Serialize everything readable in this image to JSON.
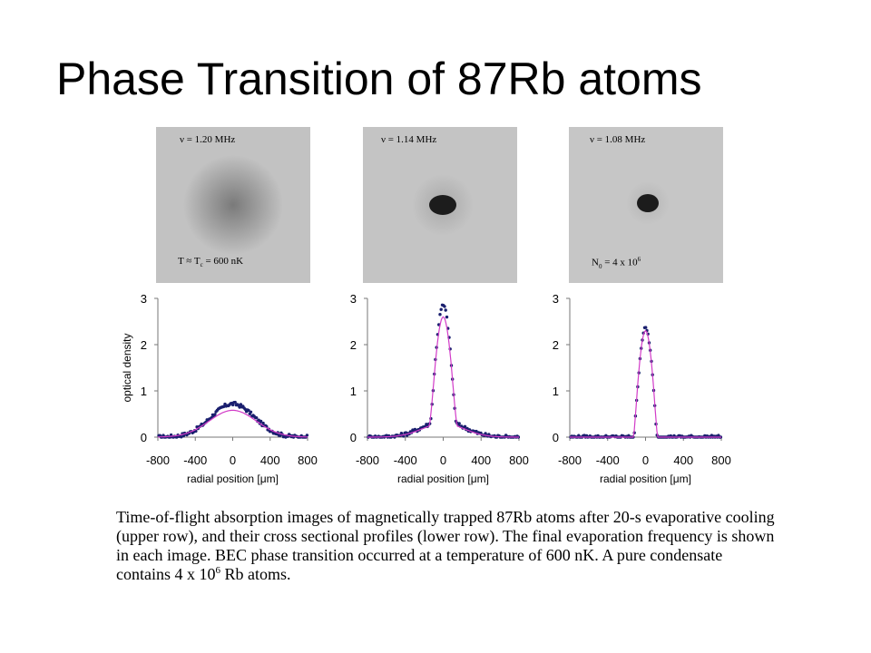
{
  "slide": {
    "title": "Phase Transition of 87Rb atoms"
  },
  "images": [
    {
      "label_top": "ν = 1.20 MHz",
      "label_bottom": "T ≈ T",
      "label_bottom_sub": "c",
      "label_bottom_rest": " = 600 nK"
    },
    {
      "label_top": "ν = 1.14 MHz"
    },
    {
      "label_top": "ν = 1.08 MHz",
      "label_bottom": "N",
      "label_bottom_sub": "0",
      "label_bottom_rest": " = 4 x 10",
      "label_bottom_sup": "6"
    }
  ],
  "caption": {
    "text_main": "Time-of-flight absorption images of magnetically trapped 87Rb atoms after 20-s evaporative cooling (upper row), and their cross sectional profiles (lower row). The final evaporation frequency is shown in each image. BEC phase transition occurred at a temperature of 600 nK. A pure condensate contains 4 x 10",
    "text_sup": "6",
    "text_end": " Rb atoms."
  },
  "chart_data": [
    {
      "type": "scatter",
      "xlabel": "radial position [μm]",
      "ylabel": "optical density",
      "xlim": [
        -800,
        800
      ],
      "ylim": [
        0,
        3
      ],
      "xticks": [
        "-800",
        "-400",
        "0",
        "400",
        "800"
      ],
      "yticks": [
        "0",
        "1",
        "2",
        "3"
      ],
      "series": [
        {
          "kind": "points",
          "color": "#1a1f6e",
          "shape": "gaussian",
          "amplitude": 0.72,
          "sigma": 230,
          "bimodal_peak": 0.0
        },
        {
          "kind": "fit",
          "color": "#d23cc8",
          "shape": "gaussian",
          "amplitude": 0.58,
          "sigma": 250
        }
      ]
    },
    {
      "type": "scatter",
      "xlabel": "radial position [μm]",
      "ylabel": "",
      "xlim": [
        -800,
        800
      ],
      "ylim": [
        0,
        3
      ],
      "xticks": [
        "-800",
        "-400",
        "0",
        "400",
        "800"
      ],
      "yticks": [
        "0",
        "1",
        "2",
        "3"
      ],
      "series": [
        {
          "kind": "points",
          "color": "#1a1f6e",
          "shape": "bimodal",
          "amplitude": 2.85,
          "sigma": 95,
          "thermal_amplitude": 0.35,
          "thermal_sigma": 220
        },
        {
          "kind": "fit",
          "color": "#d23cc8",
          "shape": "bimodal",
          "amplitude": 2.6,
          "sigma": 100,
          "thermal_amplitude": 0.3,
          "thermal_sigma": 220
        }
      ]
    },
    {
      "type": "scatter",
      "xlabel": "radial position [μm]",
      "ylabel": "",
      "xlim": [
        -800,
        800
      ],
      "ylim": [
        0,
        3
      ],
      "xticks": [
        "-800",
        "-400",
        "0",
        "400",
        "800"
      ],
      "yticks": [
        "0",
        "1",
        "2",
        "3"
      ],
      "series": [
        {
          "kind": "points",
          "color": "#1a1f6e",
          "shape": "tf",
          "amplitude": 2.35,
          "sigma": 80
        },
        {
          "kind": "fit",
          "color": "#d23cc8",
          "shape": "tf",
          "amplitude": 2.3,
          "sigma": 82
        }
      ]
    }
  ]
}
